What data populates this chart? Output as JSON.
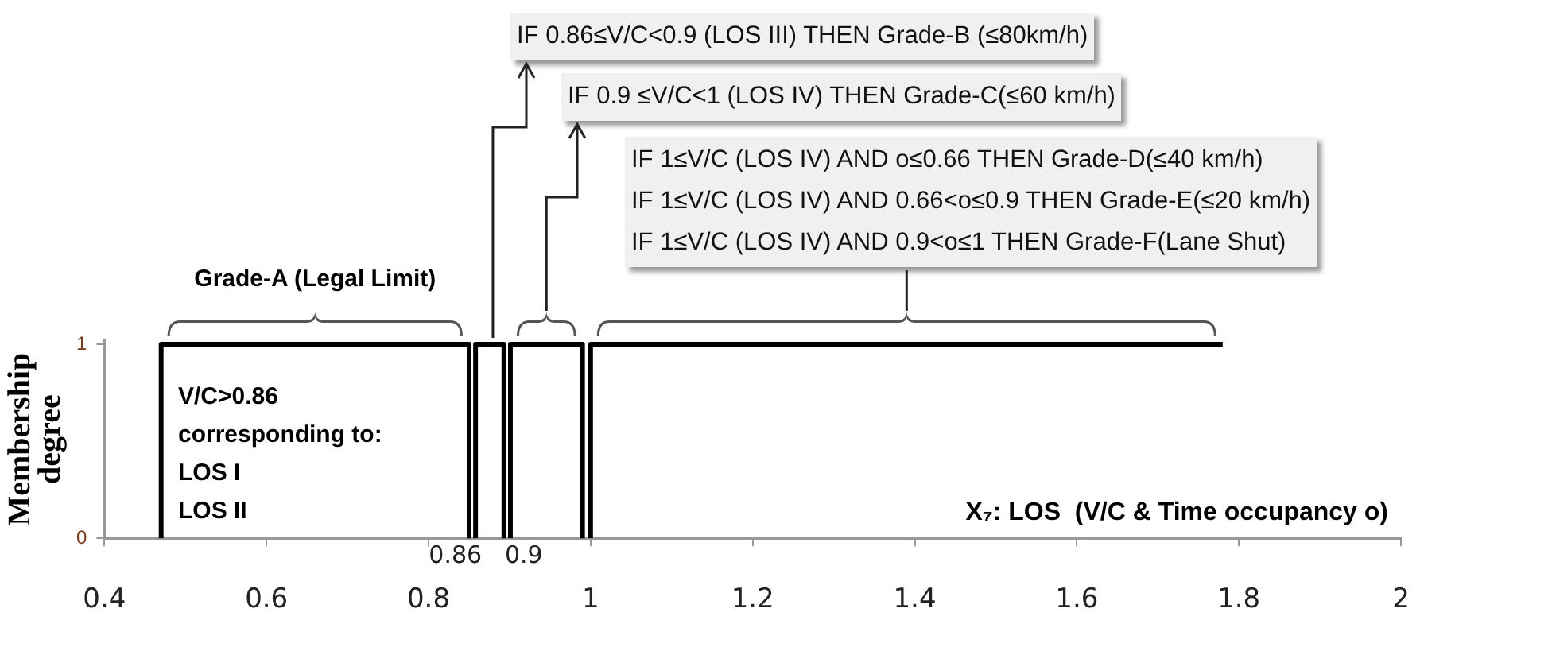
{
  "chart_data": {
    "type": "line",
    "xlabel": "X₇: LOS  (V/C & Time occupancy o)",
    "ylabel": "Membership degree",
    "xlim": [
      0.4,
      2
    ],
    "xticks": [
      0.4,
      0.6,
      0.8,
      1,
      1.2,
      1.4,
      1.6,
      1.8,
      2
    ],
    "ylim": [
      0,
      1.02
    ],
    "yticks": [
      0,
      1
    ],
    "grid": false,
    "legend": false,
    "marker": "none",
    "line_style": "solid",
    "series": [
      {
        "color": "#000000",
        "x": [
          0.47,
          0.47,
          0.85,
          0.85
        ],
        "values": [
          0,
          1,
          1,
          0
        ]
      },
      {
        "color": "#000000",
        "x": [
          0.858,
          0.858,
          0.893,
          0.893
        ],
        "values": [
          0,
          1,
          1,
          0
        ]
      },
      {
        "color": "#000000",
        "x": [
          0.901,
          0.901,
          0.99,
          0.99
        ],
        "values": [
          0,
          1,
          1,
          0
        ]
      },
      {
        "color": "#000000",
        "x": [
          1,
          1,
          1.78
        ],
        "values": [
          0,
          1,
          1
        ]
      }
    ],
    "annotations": [
      "Grade-A (Legal Limit)",
      "IF 0.86≤V/C<0.9 (LOS III) THEN Grade-B (≤80km/h)",
      "IF 0.9 ≤V/C<1 (LOS IV) THEN Grade-C(≤60 km/h)",
      "IF 1≤V/C (LOS IV) AND o≤0.66 THEN Grade-D(≤40 km/h)",
      "IF 1≤V/C (LOS IV) AND 0.66<o≤0.9 THEN Grade-E(≤20 km/h)",
      "IF 1≤V/C (LOS IV) AND 0.9<o≤1 THEN Grade-F(Lane Shut)",
      "V/C>0.86\ncorresponding to:\nLOS I\nLOS II",
      {
        "text": "0.86",
        "x": 0.86,
        "y": 0
      },
      {
        "text": "0.9",
        "x": 0.9,
        "y": 0
      }
    ]
  }
}
